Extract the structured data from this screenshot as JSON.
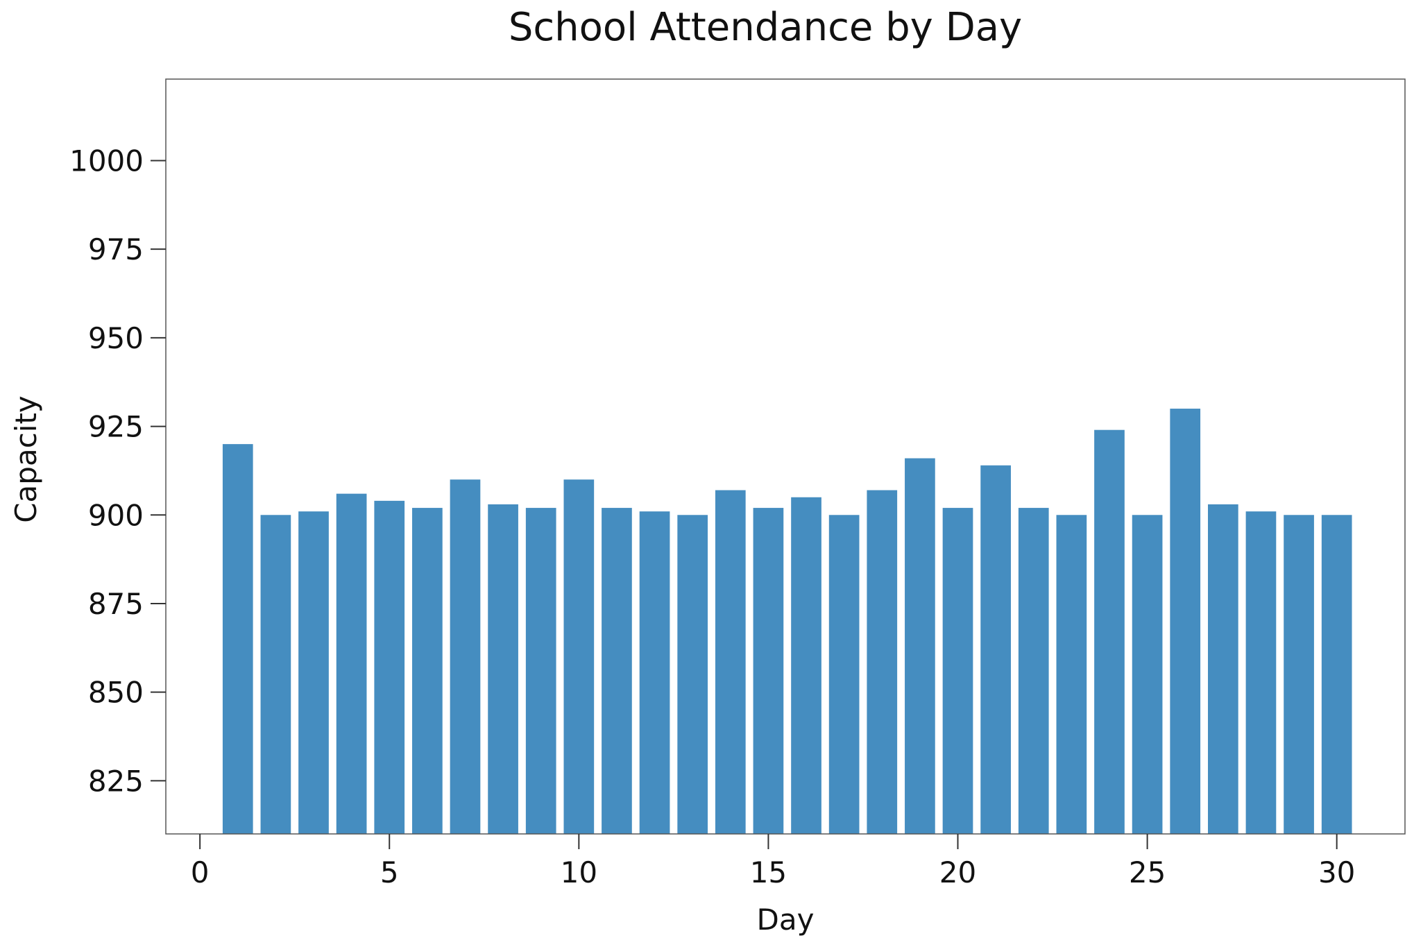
{
  "chart_data": {
    "type": "bar",
    "title": "School Attendance by Day",
    "xlabel": "Day",
    "ylabel": "Capacity",
    "x": [
      1,
      2,
      3,
      4,
      5,
      6,
      7,
      8,
      9,
      10,
      11,
      12,
      13,
      14,
      15,
      16,
      17,
      18,
      19,
      20,
      21,
      22,
      23,
      24,
      25,
      26,
      27,
      28,
      29,
      30
    ],
    "values": [
      920,
      900,
      901,
      906,
      904,
      902,
      910,
      903,
      902,
      910,
      902,
      901,
      900,
      907,
      902,
      905,
      900,
      907,
      916,
      902,
      914,
      902,
      900,
      924,
      900,
      930,
      903,
      901,
      900,
      900
    ],
    "xlim": [
      -0.9,
      31.8
    ],
    "ylim": [
      810,
      1023
    ],
    "xticks": [
      0,
      5,
      10,
      15,
      20,
      25,
      30
    ],
    "yticks": [
      825,
      850,
      875,
      900,
      925,
      950,
      975,
      1000
    ],
    "bar_color": "#458dc0",
    "grid": false,
    "legend": "none"
  }
}
